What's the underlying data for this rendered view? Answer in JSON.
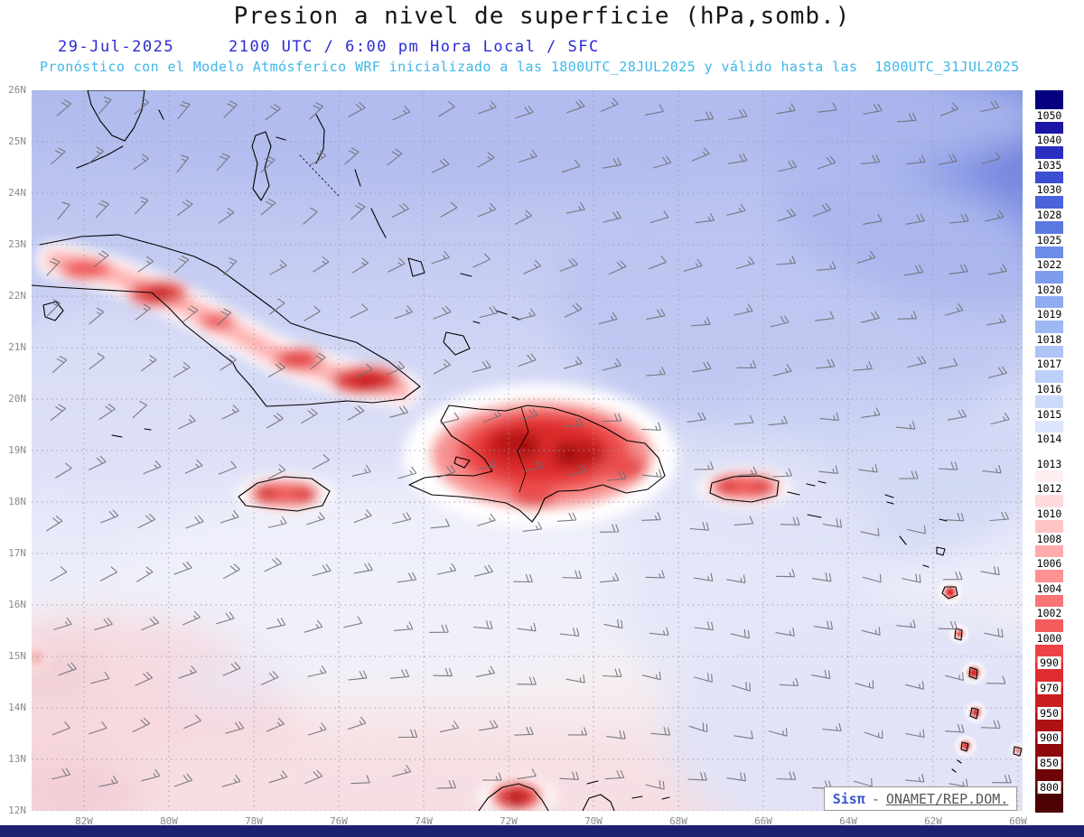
{
  "header": {
    "title": "Presion a nivel de superficie (hPa,somb.)",
    "date": "29-Jul-2025",
    "time_line": "2100 UTC / 6:00 pm Hora Local / SFC",
    "forecast_line": "Pronóstico con el Modelo Atmósferico WRF inicializado a las 1800UTC_28JUL2025 y válido hasta las  1800UTC_31JUL2025"
  },
  "attribution": {
    "brand": "Sisπ",
    "separator": "-",
    "source": "ONAMET/REP.DOM."
  },
  "colors": {
    "date_line": "#2a2ad2",
    "forecast_line": "#3eb7e8",
    "footer_bar": "#1b2071",
    "grid": "#9a9aa8",
    "coastline": "#000000",
    "wind_barbs": "#6f6f74"
  },
  "chart_data": {
    "type": "heatmap",
    "title": "Presion a nivel de superficie (hPa,somb.)",
    "variable": "surface pressure (shaded)",
    "units": "hPa",
    "model": "WRF",
    "level": "SFC",
    "init_time": "1800UTC_28JUL2025",
    "valid_until": "1800UTC_31JUL2025",
    "x_ticks": [
      "82W",
      "80W",
      "78W",
      "76W",
      "74W",
      "72W",
      "70W",
      "68W",
      "66W",
      "64W",
      "62W",
      "60W"
    ],
    "y_ticks": [
      "26N",
      "25N",
      "24N",
      "23N",
      "22N",
      "21N",
      "20N",
      "19N",
      "18N",
      "17N",
      "16N",
      "15N",
      "14N",
      "13N",
      "12N"
    ],
    "lon_range": [
      "83.2W",
      "59.9W"
    ],
    "lat_range": [
      "12N",
      "26N"
    ],
    "grid": "dotted",
    "legend_position": "right",
    "colorbar_levels": [
      1050,
      1040,
      1035,
      1030,
      1028,
      1025,
      1022,
      1020,
      1019,
      1018,
      1017,
      1016,
      1015,
      1014,
      1013,
      1012,
      1010,
      1008,
      1006,
      1004,
      1002,
      1000,
      990,
      970,
      950,
      900,
      850,
      800
    ],
    "colorbar_colors": [
      "#050080",
      "#1c16a7",
      "#2b2fc0",
      "#3c4ed1",
      "#4a63da",
      "#5b78e1",
      "#6d8ce8",
      "#7e9ced",
      "#8fabf1",
      "#9eb8f4",
      "#aec4f6",
      "#bccff8",
      "#cbdafa",
      "#dde6fc",
      "#ffffff",
      "#ffeef0",
      "#ffdbdd",
      "#ffc4c6",
      "#ffabad",
      "#ff9193",
      "#fb7577",
      "#f55a5d",
      "#ec4245",
      "#de2c2f",
      "#c91d20",
      "#ad1215",
      "#8e0a0d",
      "#6d0407",
      "#4c0103"
    ],
    "approx_pressure_field_hpa": {
      "lats": [
        26,
        24,
        22,
        20,
        18,
        16,
        14,
        12
      ],
      "lons": [
        -82,
        -80,
        -78,
        -76,
        -74,
        -72,
        -70,
        -68,
        -66,
        -64,
        -62,
        -60
      ],
      "values": [
        [
          1017,
          1017,
          1017,
          1017,
          1017,
          1018,
          1018,
          1018,
          1018,
          1019,
          1019,
          1020
        ],
        [
          1016,
          1016,
          1016,
          1017,
          1017,
          1017,
          1017,
          1018,
          1018,
          1019,
          1019,
          1020
        ],
        [
          1011,
          1010,
          1013,
          1015,
          1015,
          1016,
          1016,
          1017,
          1017,
          1017,
          1018,
          1018
        ],
        [
          1015,
          1013,
          1010,
          1011,
          1014,
          1013,
          1011,
          1015,
          1016,
          1016,
          1017,
          1017
        ],
        [
          1015,
          1015,
          1011,
          1014,
          1013,
          1009,
          1012,
          1015,
          1011,
          1015,
          1015,
          1016
        ],
        [
          1014,
          1014,
          1014,
          1014,
          1014,
          1014,
          1014,
          1015,
          1015,
          1014,
          1012,
          1014
        ],
        [
          1013,
          1013,
          1013,
          1013,
          1013,
          1013,
          1014,
          1014,
          1014,
          1014,
          1012,
          1014
        ],
        [
          1012,
          1012,
          1012,
          1012,
          1013,
          1010,
          1013,
          1013,
          1013,
          1014,
          1012,
          1013
        ]
      ]
    },
    "features": [
      "Subtropical high shading (1019-1022 hPa) over the northeast Atlantic corner",
      "Heat lows (1006-1012 hPa, red shading) over Cuba, Hispaniola, Jamaica, Puerto Rico and the Lesser Antilles",
      "Easterly trade-wind barbs (5-15 kt) across the basin"
    ],
    "overlays": [
      "filled pressure contours",
      "wind barbs",
      "coastlines",
      "dotted graticule"
    ]
  }
}
